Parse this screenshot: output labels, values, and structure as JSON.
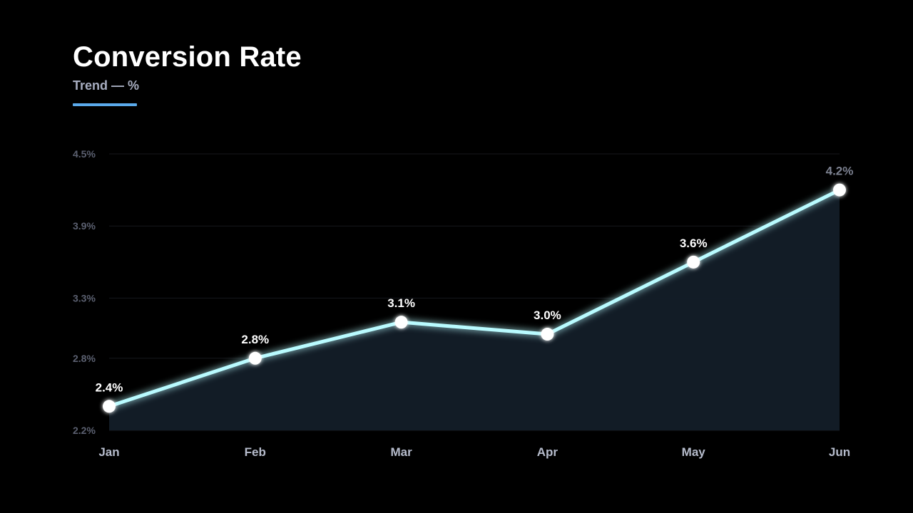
{
  "header": {
    "title": "Conversion Rate",
    "subtitle": "Trend — %"
  },
  "colors": {
    "background": "#000000",
    "accent": "#5aa9ea",
    "line": "#b9fbff",
    "area": "#131e28",
    "grid": "#16181d"
  },
  "chart_data": {
    "type": "line",
    "title": "Conversion Rate",
    "subtitle": "Trend — %",
    "categories": [
      "Jan",
      "Feb",
      "Mar",
      "Apr",
      "May",
      "Jun"
    ],
    "values": [
      2.4,
      2.8,
      3.1,
      3.0,
      3.6,
      4.2
    ],
    "data_labels": [
      "2.4%",
      "2.8%",
      "3.1%",
      "3.0%",
      "3.6%",
      "4.2%"
    ],
    "yticks": [
      2.2,
      2.8,
      3.3,
      3.9,
      4.5
    ],
    "ytick_labels": [
      "2.2%",
      "2.8%",
      "3.3%",
      "3.9%",
      "4.5%"
    ],
    "ylim": [
      2.2,
      4.5
    ],
    "xlabel": "",
    "ylabel": "",
    "grid": true,
    "area_fill": true,
    "legend": "none"
  }
}
